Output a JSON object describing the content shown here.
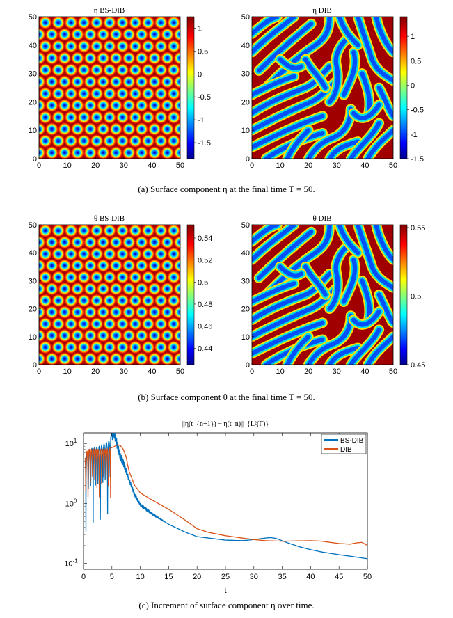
{
  "captions": {
    "a": "(a)  Surface component η at the final time T = 50.",
    "b": "(b)  Surface component θ at the final time T = 50.",
    "c": "(c)  Increment of surface component η over time."
  },
  "chart_data": [
    {
      "type": "heatmap",
      "title": "η BS-DIB",
      "pattern": "spots",
      "xlim": [
        0,
        50
      ],
      "ylim": [
        0,
        50
      ],
      "x_ticks": [
        0,
        10,
        20,
        30,
        40,
        50
      ],
      "y_ticks": [
        0,
        10,
        20,
        30,
        40,
        50
      ],
      "colorbar": {
        "range": [
          -1.85,
          1.25
        ],
        "ticks": [
          1,
          0.5,
          0,
          -0.5,
          -1,
          -1.5
        ]
      }
    },
    {
      "type": "heatmap",
      "title": "η DIB",
      "pattern": "stripes",
      "xlim": [
        0,
        50
      ],
      "ylim": [
        0,
        50
      ],
      "x_ticks": [
        0,
        10,
        20,
        30,
        40,
        50
      ],
      "y_ticks": [
        0,
        10,
        20,
        30,
        40,
        50
      ],
      "colorbar": {
        "range": [
          -1.5,
          1.4
        ],
        "ticks": [
          1,
          0.5,
          0,
          -0.5,
          -1,
          -1.5
        ]
      }
    },
    {
      "type": "heatmap",
      "title": "θ BS-DIB",
      "pattern": "spots",
      "xlim": [
        0,
        50
      ],
      "ylim": [
        0,
        50
      ],
      "x_ticks": [
        0,
        10,
        20,
        30,
        40,
        50
      ],
      "y_ticks": [
        0,
        10,
        20,
        30,
        40,
        50
      ],
      "colorbar": {
        "range": [
          0.425,
          0.552
        ],
        "ticks": [
          0.54,
          0.52,
          0.5,
          0.48,
          0.46,
          0.44
        ]
      }
    },
    {
      "type": "heatmap",
      "title": "θ DIB",
      "pattern": "stripes",
      "xlim": [
        0,
        50
      ],
      "ylim": [
        0,
        50
      ],
      "x_ticks": [
        0,
        10,
        20,
        30,
        40,
        50
      ],
      "y_ticks": [
        0,
        10,
        20,
        30,
        40,
        50
      ],
      "colorbar": {
        "range": [
          0.45,
          0.552
        ],
        "ticks": [
          0.55,
          0.5,
          0.45
        ]
      }
    },
    {
      "type": "line",
      "title": "||η(t_{n+1}) − η(t_n)||_{L²(Γ)}",
      "xlabel": "t",
      "ylabel": "",
      "xlim": [
        0,
        50
      ],
      "ylim": [
        0.08,
        15
      ],
      "yscale": "log",
      "x_ticks": [
        0,
        5,
        10,
        15,
        20,
        25,
        30,
        35,
        40,
        45,
        50
      ],
      "y_ticks": [
        {
          "value": 10,
          "base": "10",
          "exp": "1"
        },
        {
          "value": 1,
          "base": "10",
          "exp": "0"
        },
        {
          "value": 0.1,
          "base": "10",
          "exp": "-1"
        }
      ],
      "legend": {
        "position": "top-right"
      },
      "series": [
        {
          "name": "BS-DIB",
          "color": "#0072BD",
          "t": [
            0.3,
            1,
            2,
            3,
            3.8,
            4.5,
            5,
            5.3,
            5.6,
            6,
            6.5,
            7,
            7.5,
            8,
            8.5,
            9,
            10,
            12,
            15,
            18,
            20,
            25,
            28,
            30,
            32,
            33,
            34,
            36,
            38,
            40,
            42,
            45,
            48,
            50
          ],
          "y": [
            6,
            8,
            8.5,
            9,
            10,
            11,
            14,
            16,
            13,
            9,
            6,
            4.8,
            3.5,
            2.5,
            1.9,
            1.4,
            0.95,
            0.68,
            0.45,
            0.33,
            0.28,
            0.245,
            0.24,
            0.25,
            0.265,
            0.27,
            0.26,
            0.22,
            0.19,
            0.17,
            0.155,
            0.14,
            0.128,
            0.12
          ]
        },
        {
          "name": "DIB",
          "color": "#D95319",
          "t": [
            0.3,
            1,
            2,
            3,
            4,
            5,
            5.5,
            6,
            6.5,
            7,
            7.5,
            8,
            9,
            10,
            12,
            15,
            18,
            20,
            22,
            25,
            28,
            30,
            32,
            35,
            38,
            40,
            42,
            45,
            47,
            48,
            49,
            50
          ],
          "y": [
            7,
            8,
            8,
            8,
            8,
            8.5,
            9,
            9.5,
            9.2,
            8,
            6,
            3.5,
            2,
            1.5,
            1.15,
            0.8,
            0.52,
            0.38,
            0.33,
            0.29,
            0.265,
            0.25,
            0.24,
            0.235,
            0.238,
            0.24,
            0.235,
            0.215,
            0.21,
            0.22,
            0.225,
            0.2
          ]
        }
      ]
    }
  ]
}
